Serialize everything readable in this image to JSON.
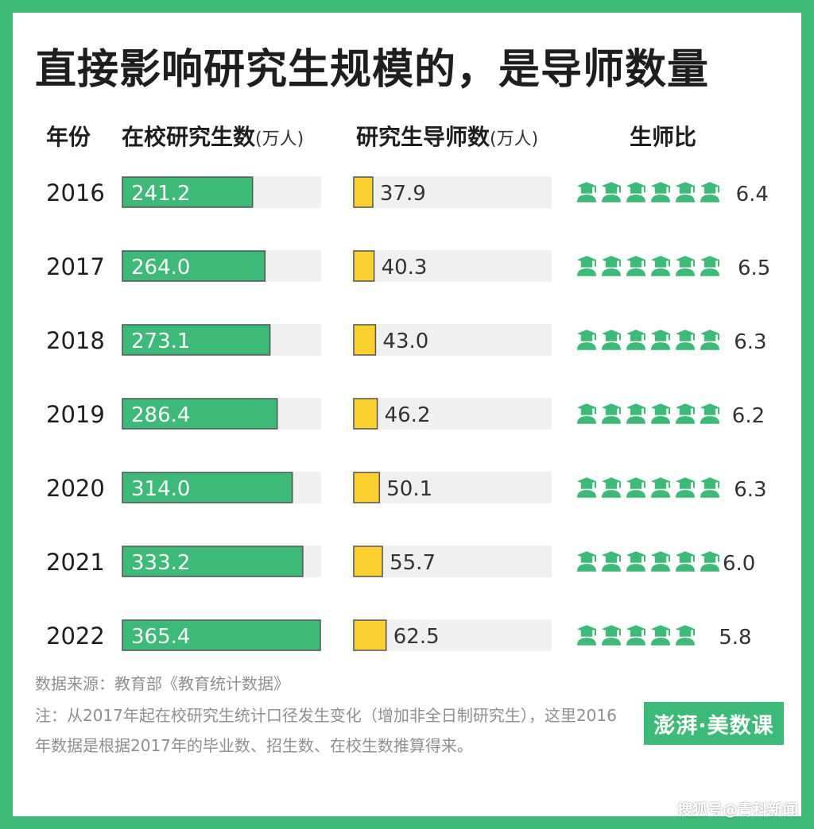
{
  "title": "直接影响研究生规模的，是导师数量",
  "headers": {
    "year": "年份",
    "students": "在校研究生数",
    "students_unit": "(万人)",
    "mentors": "研究生导师数",
    "mentors_unit": "(万人)",
    "ratio": "生师比"
  },
  "colors": {
    "background": "#3dba77",
    "students_bar": "#3dba77",
    "mentors_bar": "#fcd12f",
    "track": "#f0f0f0",
    "student_icon": "#3dba77"
  },
  "icon_name": "graduation-cap-student-icon",
  "chart_data": {
    "type": "bar",
    "categories": [
      "2016",
      "2017",
      "2018",
      "2019",
      "2020",
      "2021",
      "2022"
    ],
    "series": [
      {
        "name": "在校研究生数",
        "values": [
          241.2,
          264.0,
          273.1,
          286.4,
          314.0,
          333.2,
          365.4
        ]
      },
      {
        "name": "研究生导师数",
        "values": [
          37.9,
          40.3,
          43.0,
          46.2,
          50.1,
          55.7,
          62.5
        ]
      },
      {
        "name": "生师比",
        "values": [
          6.4,
          6.5,
          6.3,
          6.2,
          6.3,
          6.0,
          5.8
        ]
      }
    ],
    "value_labels": {
      "students": [
        "241.2",
        "264.0",
        "273.1",
        "286.4",
        "314.0",
        "333.2",
        "365.4"
      ],
      "mentors": [
        "37.9",
        "40.3",
        "43.0",
        "46.2",
        "50.1",
        "55.7",
        "62.5"
      ],
      "ratio": [
        "6.4",
        "6.5",
        "6.3",
        "6.2",
        "6.3",
        "6.0",
        "5.8"
      ]
    },
    "students_max": 365.4,
    "mentors_max": 365.4
  },
  "source": "数据来源：教育部《教育统计数据》",
  "note": "注：从2017年起在校研究生统计口径发生变化（增加非全日制研究生），这里2016年数据是根据2017年的毕业数、招生数、在校生数推算得来。",
  "logo": "澎湃·美数课",
  "watermark": "搜狐号@青科新闻"
}
